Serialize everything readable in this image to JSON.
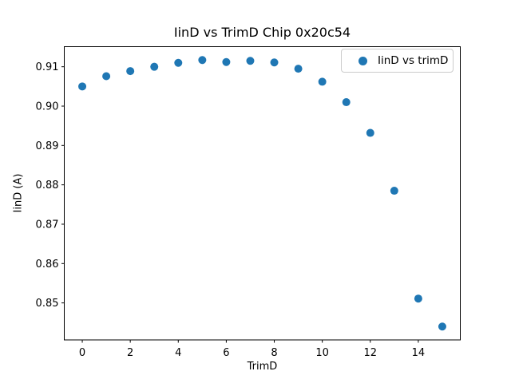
{
  "chart_data": {
    "type": "scatter",
    "title": "IinD vs TrimD Chip 0x20c54",
    "xlabel": "TrimD",
    "ylabel": "IinD (A)",
    "x": [
      0,
      1,
      2,
      3,
      4,
      5,
      6,
      7,
      8,
      9,
      10,
      11,
      12,
      13,
      14,
      15
    ],
    "y": [
      0.905,
      0.9076,
      0.9089,
      0.91,
      0.911,
      0.9117,
      0.9112,
      0.9115,
      0.9111,
      0.9095,
      0.9062,
      0.901,
      0.8932,
      0.8785,
      0.8511,
      0.844
    ],
    "xlim": [
      -0.75,
      15.75
    ],
    "ylim": [
      0.8406,
      0.9151
    ],
    "xticks": [
      0,
      2,
      4,
      6,
      8,
      10,
      12,
      14
    ],
    "yticks": [
      0.85,
      0.86,
      0.87,
      0.88,
      0.89,
      0.9,
      0.91
    ],
    "grid": false,
    "marker": {
      "shape": "circle",
      "color": "#1f77b4",
      "radius_px": 5
    },
    "axis_color": "#000000",
    "legend": {
      "position": "upper right",
      "entries": [
        {
          "label": "IinD vs trimD",
          "marker_color": "#1f77b4"
        }
      ]
    }
  }
}
